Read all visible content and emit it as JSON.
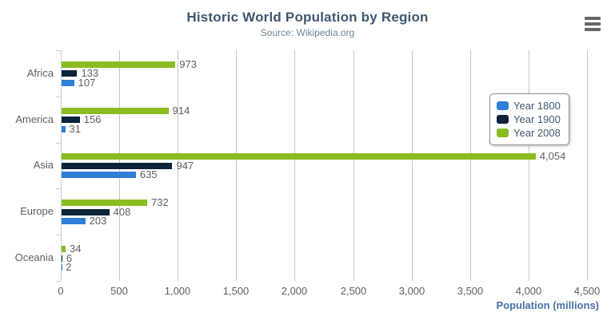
{
  "header": {
    "title": "Historic World Population by Region",
    "subtitle": "Source: Wikipedia.org"
  },
  "export_menu": {
    "icon": "hamburger-menu-icon"
  },
  "chart_data": {
    "type": "bar",
    "orientation": "horizontal",
    "title": "Historic World Population by Region",
    "subtitle": "Source: Wikipedia.org",
    "categories": [
      "Africa",
      "America",
      "Asia",
      "Europe",
      "Oceania"
    ],
    "series": [
      {
        "name": "Year 1800",
        "color": "#2f7ed8",
        "values": [
          107,
          31,
          635,
          203,
          2
        ]
      },
      {
        "name": "Year 1900",
        "color": "#0d233a",
        "values": [
          133,
          156,
          947,
          408,
          6
        ]
      },
      {
        "name": "Year 2008",
        "color": "#8bbc21",
        "values": [
          973,
          914,
          4054,
          732,
          34
        ]
      }
    ],
    "bar_order_top_to_bottom": [
      "Year 2008",
      "Year 1900",
      "Year 1800"
    ],
    "data_labels_shown": true,
    "data_label_format": "thousands-comma",
    "xlabel": "Population (millions)",
    "xlim": [
      0,
      4500
    ],
    "x_tick_values": [
      0,
      500,
      1000,
      1500,
      2000,
      2500,
      3000,
      3500,
      4000,
      4500
    ],
    "x_tick_labels": [
      "0",
      "500",
      "1,000",
      "1,500",
      "2,000",
      "2,500",
      "3,000",
      "3,500",
      "4,000",
      "4,500"
    ],
    "grid": true,
    "legend_position": "right-middle",
    "legend_items": [
      "Year 1800",
      "Year 1900",
      "Year 2008"
    ]
  },
  "colors": {
    "background": "#FFFFFF",
    "title": "#3E576F",
    "subtitle": "#6D869F",
    "axis_title": "#4572A7",
    "labels": "#606060",
    "grid_line": "#C6C6C6",
    "axis_line": "#C0D0E0",
    "legend_text": "#3E576F",
    "legend_border": "#909090",
    "menu_icon": "#666666",
    "series_year_1800": "#2f7ed8",
    "series_year_1900": "#0d233a",
    "series_year_2008": "#8bbc21"
  }
}
